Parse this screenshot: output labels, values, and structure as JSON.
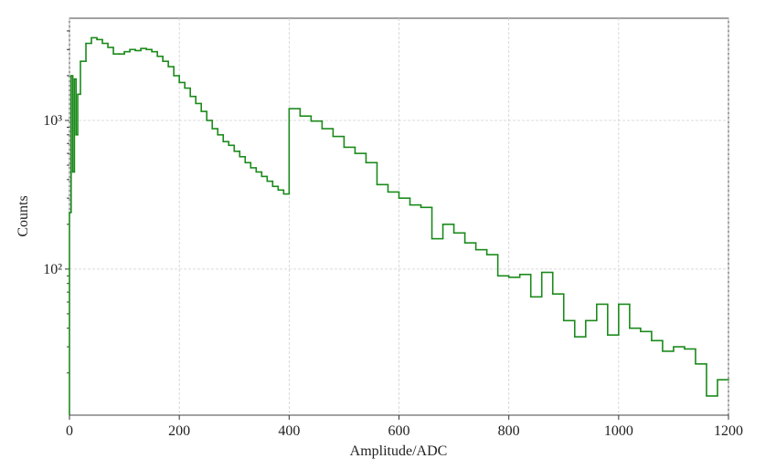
{
  "chart_data": {
    "type": "histogram",
    "xlabel": "Amplitude/ADC",
    "ylabel": "Counts",
    "color": "#1a8a1a",
    "log_y": true,
    "grid": true,
    "xlim": [
      0,
      1200
    ],
    "xticks": [
      0,
      200,
      400,
      600,
      800,
      1000,
      1200
    ],
    "ylim": [
      10.4,
      4870
    ],
    "yticks": [
      {
        "value": 100,
        "label": "10²"
      },
      {
        "value": 1000,
        "label": "10³"
      }
    ],
    "bins": [
      0,
      3,
      6,
      9,
      12,
      15,
      20,
      30,
      40,
      50,
      60,
      70,
      80,
      90,
      100,
      110,
      120,
      130,
      140,
      150,
      160,
      170,
      180,
      190,
      200,
      210,
      220,
      230,
      240,
      250,
      260,
      270,
      280,
      290,
      300,
      310,
      320,
      330,
      340,
      350,
      360,
      370,
      380,
      390,
      400,
      420,
      440,
      460,
      480,
      500,
      520,
      540,
      560,
      580,
      600,
      620,
      640,
      660,
      680,
      700,
      720,
      740,
      760,
      780,
      800,
      820,
      840,
      860,
      880,
      900,
      920,
      940,
      960,
      980,
      1000,
      1020,
      1040,
      1060,
      1080,
      1100,
      1120,
      1140,
      1160,
      1180,
      1200
    ],
    "values": [
      240,
      2000,
      450,
      1900,
      800,
      1500,
      2500,
      3300,
      3600,
      3500,
      3300,
      3100,
      2800,
      2800,
      2900,
      3000,
      2950,
      3050,
      3000,
      2900,
      2700,
      2500,
      2300,
      2000,
      1800,
      1650,
      1450,
      1300,
      1150,
      1000,
      880,
      800,
      720,
      680,
      620,
      570,
      520,
      480,
      450,
      420,
      390,
      360,
      340,
      320,
      1200,
      1070,
      990,
      880,
      780,
      660,
      600,
      520,
      370,
      330,
      300,
      270,
      260,
      160,
      200,
      175,
      150,
      135,
      125,
      90,
      88,
      92,
      65,
      95,
      68,
      45,
      35,
      45,
      58,
      36,
      58,
      40,
      38,
      33,
      28,
      30,
      29,
      23,
      14,
      18
    ]
  }
}
